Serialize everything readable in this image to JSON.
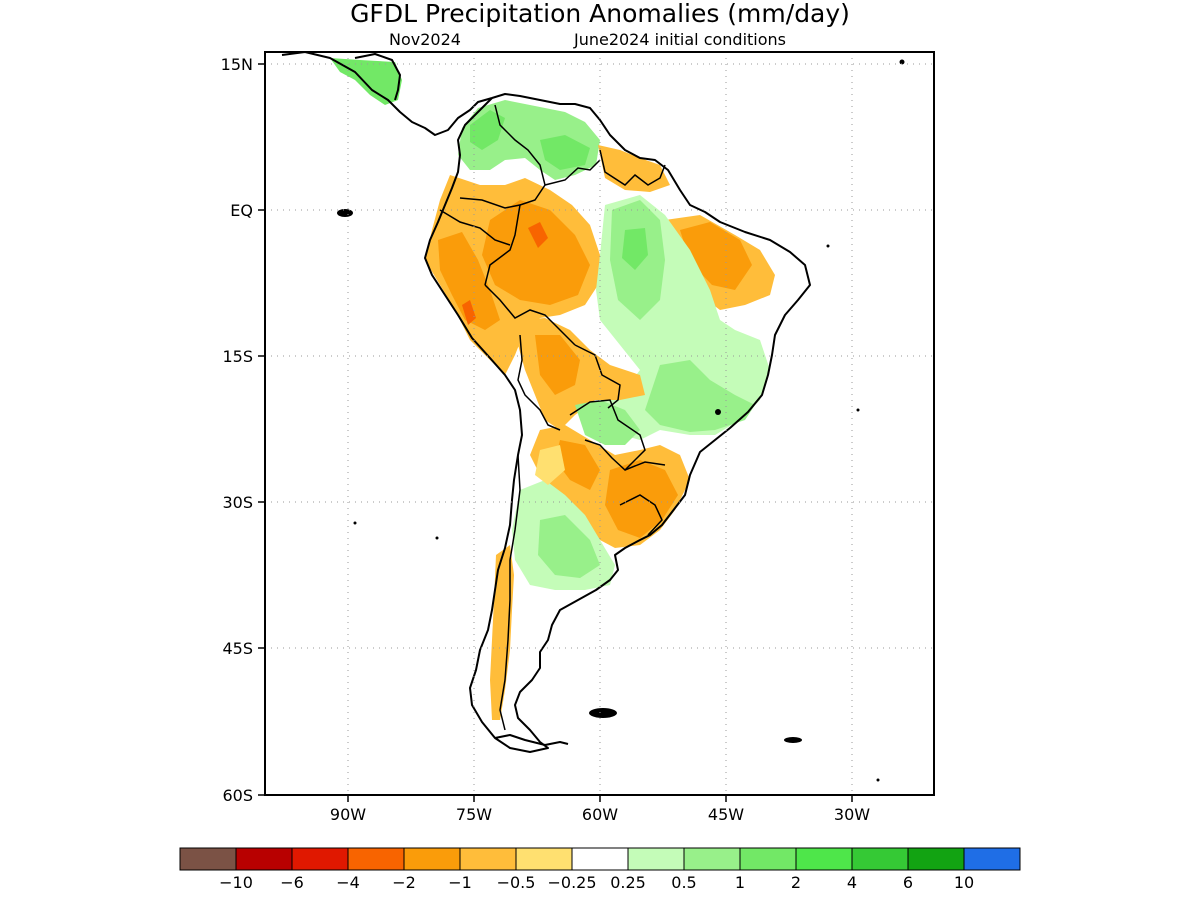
{
  "title": "GFDL Precipitation Anomalies (mm/day)",
  "subtitle_left": "Nov2024",
  "subtitle_right": "June2024 initial conditions",
  "lat_labels": [
    "15N",
    "EQ",
    "15S",
    "30S",
    "45S",
    "60S"
  ],
  "lon_labels": [
    "90W",
    "75W",
    "60W",
    "45W",
    "30W"
  ],
  "colorbar": {
    "colors": [
      "#7b5245",
      "#b80000",
      "#e01800",
      "#f86400",
      "#fa9c0a",
      "#ffbd3a",
      "#ffe070",
      "#ffffff",
      "#c4fcb8",
      "#98f08a",
      "#72e866",
      "#4ee64a",
      "#35c935",
      "#12a312",
      "#1f6ee6"
    ],
    "labels": [
      "−10",
      "−6",
      "−4",
      "−2",
      "−1",
      "−0.5",
      "−0.25",
      "0.25",
      "0.5",
      "1",
      "2",
      "4",
      "6",
      "10"
    ]
  }
}
